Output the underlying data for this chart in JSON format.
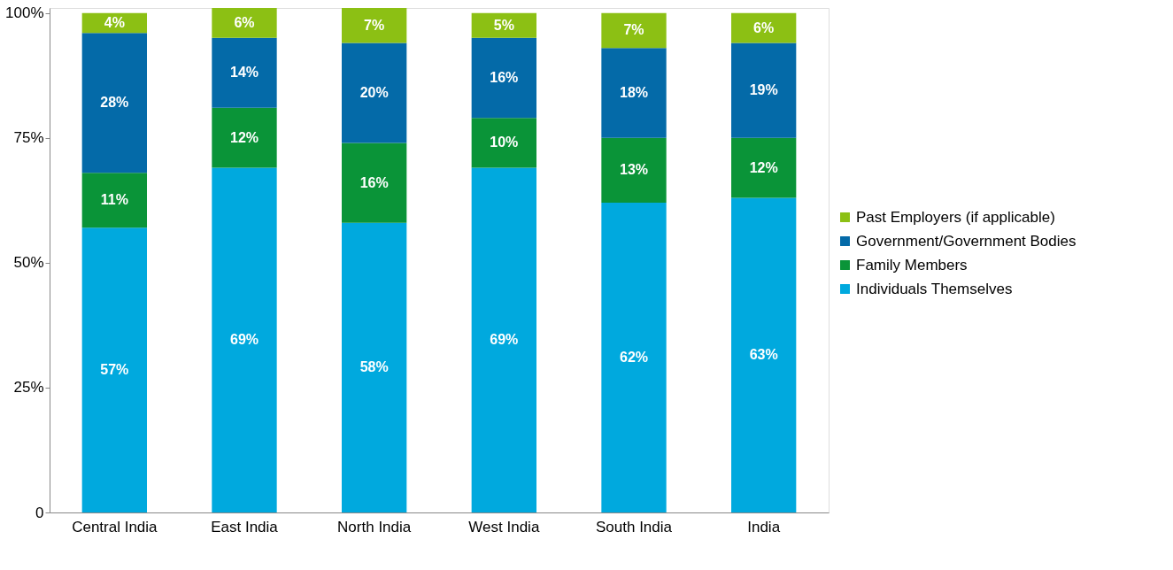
{
  "chart_data": {
    "type": "bar",
    "stacked": true,
    "categories": [
      "Central India",
      "East India",
      "North India",
      "West India",
      "South India",
      "India"
    ],
    "series": [
      {
        "name": "Individuals Themselves",
        "color": "#00a9de",
        "values": [
          57,
          69,
          58,
          69,
          62,
          63
        ],
        "value_labels": [
          "57%",
          "69%",
          "58%",
          "69%",
          "62%",
          "63%"
        ]
      },
      {
        "name": "Family Members",
        "color": "#0a9438",
        "values": [
          11,
          12,
          16,
          10,
          13,
          12
        ],
        "value_labels": [
          "11%",
          "12%",
          "16%",
          "10%",
          "13%",
          "12%"
        ]
      },
      {
        "name": "Government/Government Bodies",
        "color": "#046aa8",
        "values": [
          28,
          14,
          20,
          16,
          18,
          19
        ],
        "value_labels": [
          "28%",
          "14%",
          "20%",
          "16%",
          "18%",
          "19%"
        ]
      },
      {
        "name": "Past Employers (if applicable)",
        "color": "#8cc014",
        "values": [
          4,
          6,
          7,
          5,
          7,
          6
        ],
        "value_labels": [
          "4%",
          "6%",
          "7%",
          "5%",
          "7%",
          "6%"
        ]
      }
    ],
    "ylim": [
      0,
      101
    ],
    "yticks": [
      0,
      {
        "value": 25,
        "label": "25%"
      },
      {
        "value": 50,
        "label": "50%"
      },
      {
        "value": 75,
        "label": "75%"
      },
      {
        "value": 100,
        "label": "100%"
      }
    ],
    "grid": false,
    "legend": "right"
  }
}
